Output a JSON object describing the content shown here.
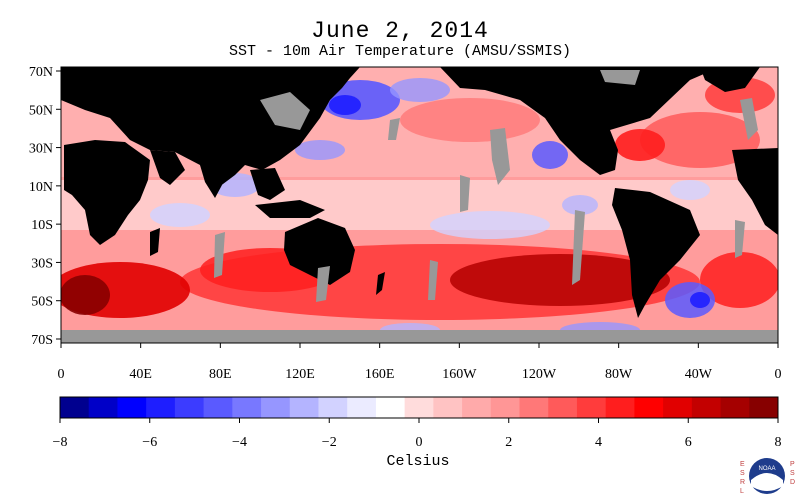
{
  "title": "June 2, 2014",
  "subtitle": "SST - 10m Air Temperature (AMSU/SSMIS)",
  "lat_labels": [
    "70N",
    "50N",
    "30N",
    "10N",
    "10S",
    "30S",
    "50S",
    "70S"
  ],
  "lon_labels": [
    "0",
    "40E",
    "80E",
    "120E",
    "160E",
    "160W",
    "120W",
    "80W",
    "40W",
    "0"
  ],
  "colorbar": {
    "title": "Celsius",
    "min": -8,
    "max": 8,
    "tick_labels": [
      "−8",
      "−6",
      "−4",
      "−2",
      "0",
      "2",
      "4",
      "6",
      "8"
    ],
    "colors": [
      "#00008f",
      "#0000c8",
      "#0000ff",
      "#1e1eff",
      "#3c3cff",
      "#5a5aff",
      "#7878ff",
      "#9696ff",
      "#b4b4ff",
      "#d2d2ff",
      "#ebebff",
      "#ffffff",
      "#ffdcdc",
      "#ffc3c3",
      "#ffaaaa",
      "#ff9696",
      "#ff7878",
      "#ff5a5a",
      "#ff3c3c",
      "#ff1e1e",
      "#ff0000",
      "#e10000",
      "#c30000",
      "#a50000",
      "#870000"
    ]
  },
  "map_colors": {
    "land": "#000000",
    "ice": "#989898",
    "ocean_base": "#ff9c9c"
  },
  "logo": {
    "left_text": "ESRL",
    "right_text": "PSD",
    "badge_text": "NOAA"
  }
}
